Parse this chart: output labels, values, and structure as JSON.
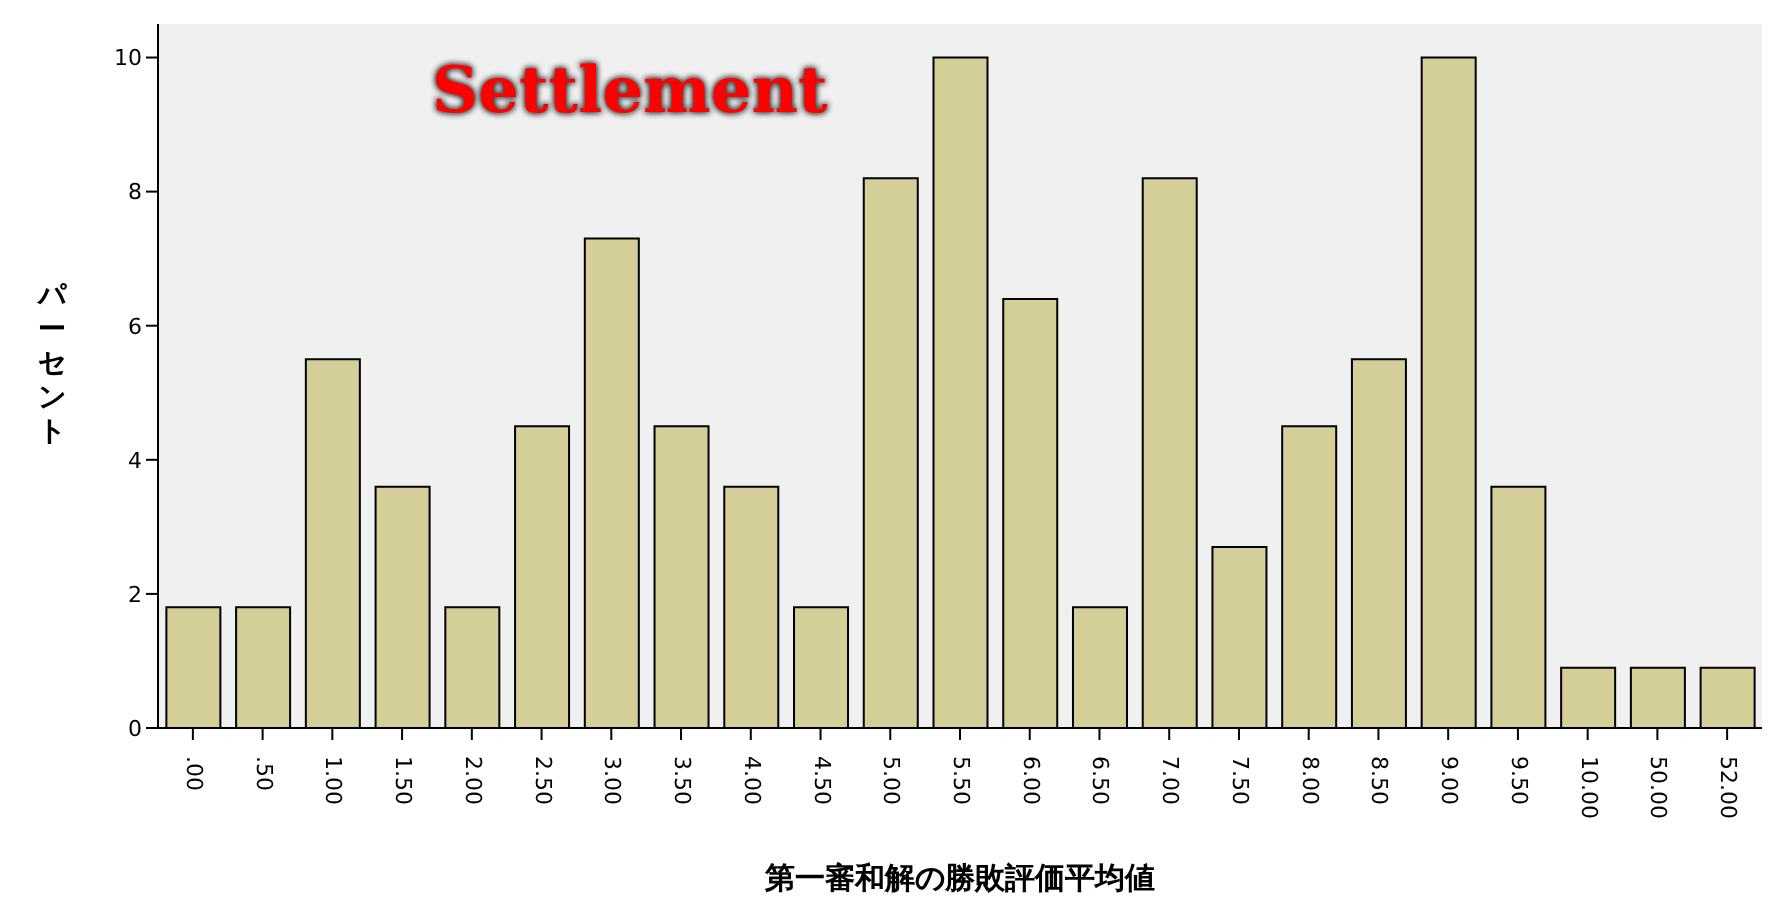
{
  "chart_data": {
    "type": "bar",
    "title": "Settlement",
    "xlabel": "第一審和解の勝敗評価平均値",
    "ylabel": "パーセント",
    "categories": [
      ".00",
      ".50",
      "1.00",
      "1.50",
      "2.00",
      "2.50",
      "3.00",
      "3.50",
      "4.00",
      "4.50",
      "5.00",
      "5.50",
      "6.00",
      "6.50",
      "7.00",
      "7.50",
      "8.00",
      "8.50",
      "9.00",
      "9.50",
      "10.00",
      "50.00",
      "52.00"
    ],
    "values": [
      1.8,
      1.8,
      5.5,
      3.6,
      1.8,
      4.5,
      7.3,
      4.5,
      3.6,
      1.8,
      8.2,
      10,
      6.4,
      1.8,
      8.2,
      2.7,
      4.5,
      5.5,
      10,
      3.6,
      0.9,
      0.9,
      0.9
    ],
    "color": "#d4cf98",
    "ylim": [
      0,
      10.5
    ],
    "yticks": [
      0,
      2,
      4,
      6,
      8,
      10
    ],
    "grid": false,
    "legend": false
  }
}
